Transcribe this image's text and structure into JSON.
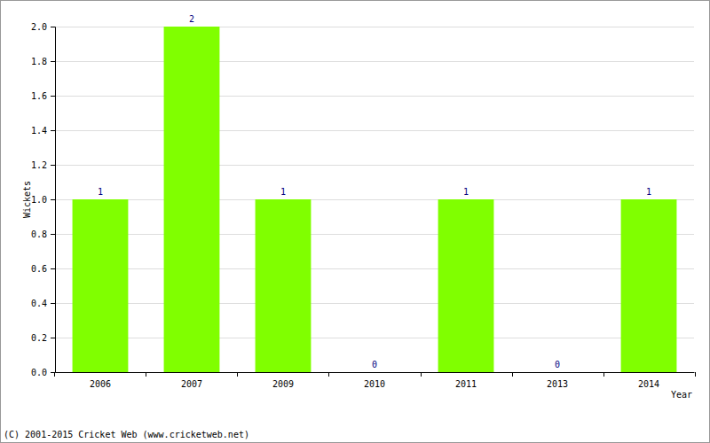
{
  "chart_data": {
    "type": "bar",
    "categories": [
      "2006",
      "2007",
      "2009",
      "2010",
      "2011",
      "2013",
      "2014"
    ],
    "values": [
      1,
      2,
      1,
      0,
      1,
      0,
      1
    ],
    "color": "#80ff00",
    "x_label": "Year",
    "y_label": "Wickets",
    "ylim": [
      0,
      2
    ],
    "yticks": [
      {
        "value": 0,
        "label": "0.0"
      },
      {
        "value": 0.2,
        "label": "0.2"
      },
      {
        "value": 0.4,
        "label": "0.4"
      },
      {
        "value": 0.6,
        "label": "0.6"
      },
      {
        "value": 0.8,
        "label": "0.8"
      },
      {
        "value": 1,
        "label": "1.0"
      },
      {
        "value": 1.2,
        "label": "1.2"
      },
      {
        "value": 1.4,
        "label": "1.4"
      },
      {
        "value": 1.6,
        "label": "1.6"
      },
      {
        "value": 1.8,
        "label": "1.8"
      },
      {
        "value": 2,
        "label": "2.0"
      }
    ],
    "grid": true,
    "data_labels": true,
    "annotations": [
      "(C) 2001-2015 Cricket Web (www.cricketweb.net)"
    ]
  }
}
